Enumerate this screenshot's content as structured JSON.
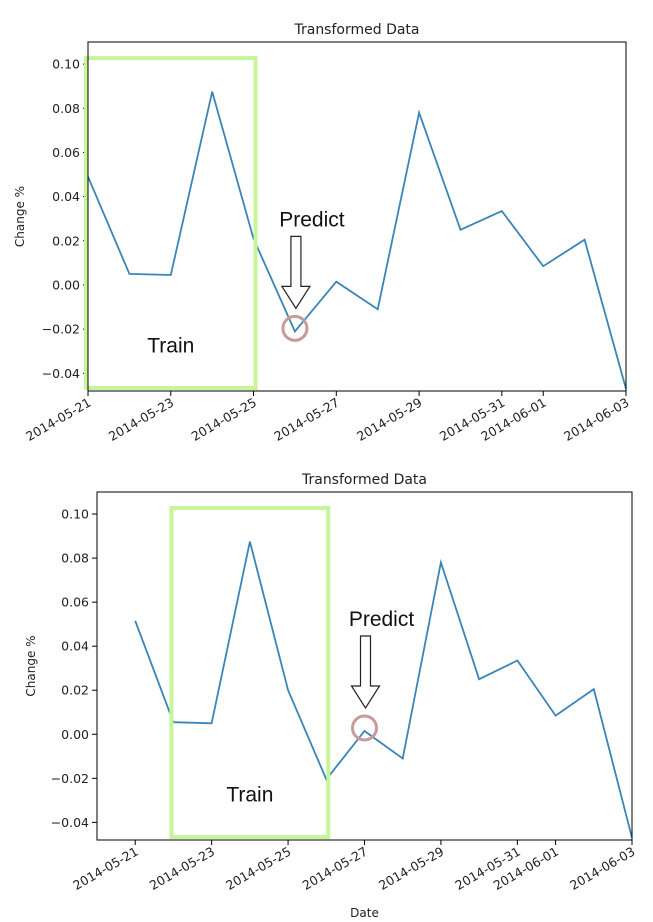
{
  "chart_data": [
    {
      "type": "line",
      "title": "Transformed Data",
      "xlabel": "",
      "ylabel": "Change %",
      "x": [
        "2014-05-21",
        "2014-05-22",
        "2014-05-23",
        "2014-05-24",
        "2014-05-25",
        "2014-05-26",
        "2014-05-27",
        "2014-05-28",
        "2014-05-29",
        "2014-05-30",
        "2014-05-31",
        "2014-06-01",
        "2014-06-02",
        "2014-06-03"
      ],
      "series": [
        {
          "values": [
            0.049,
            0.005,
            0.0045,
            0.0875,
            0.021,
            -0.021,
            0.0015,
            -0.011,
            0.078,
            0.025,
            0.0335,
            0.0085,
            0.0205,
            -0.047
          ]
        }
      ],
      "xticks": [
        "2014-05-21",
        "2014-05-23",
        "2014-05-25",
        "2014-05-27",
        "2014-05-29",
        "2014-05-31",
        "2014-06-01",
        "2014-06-03"
      ],
      "yticks": [
        -0.04,
        -0.02,
        0.0,
        0.02,
        0.04,
        0.06,
        0.08,
        0.1
      ],
      "ytick_labels": [
        "−0.04",
        "−0.02",
        "0.00",
        "0.02",
        "0.04",
        "0.06",
        "0.08",
        "0.10"
      ],
      "xlim": [
        "2014-05-21",
        "2014-06-03"
      ],
      "ylim": [
        -0.048,
        0.11
      ],
      "line_color": "#3a85b8",
      "annotations": {
        "train_label": "Train",
        "train_range": [
          "2014-05-21",
          "2014-05-25"
        ],
        "predict_label": "Predict",
        "predict_point": "2014-05-26",
        "box_color": "#c6f59a",
        "circle_color": "#c89a9a"
      }
    },
    {
      "type": "line",
      "title": "Transformed Data",
      "xlabel": "Date",
      "ylabel": "Change %",
      "x": [
        "2014-05-21",
        "2014-05-22",
        "2014-05-23",
        "2014-05-24",
        "2014-05-25",
        "2014-05-26",
        "2014-05-27",
        "2014-05-28",
        "2014-05-29",
        "2014-05-30",
        "2014-05-31",
        "2014-06-01",
        "2014-06-02",
        "2014-06-03"
      ],
      "series": [
        {
          "values": [
            0.0515,
            0.0055,
            0.005,
            0.0875,
            0.02,
            -0.0205,
            0.0015,
            -0.011,
            0.078,
            0.025,
            0.0335,
            0.0085,
            0.0205,
            -0.047
          ]
        }
      ],
      "xticks": [
        "2014-05-21",
        "2014-05-23",
        "2014-05-25",
        "2014-05-27",
        "2014-05-29",
        "2014-05-31",
        "2014-06-01",
        "2014-06-03"
      ],
      "yticks": [
        -0.04,
        -0.02,
        0.0,
        0.02,
        0.04,
        0.06,
        0.08,
        0.1
      ],
      "ytick_labels": [
        "−0.04",
        "−0.02",
        "0.00",
        "0.02",
        "0.04",
        "0.06",
        "0.08",
        "0.10"
      ],
      "xlim": [
        "2014-05-20",
        "2014-06-03"
      ],
      "ylim": [
        -0.048,
        0.11
      ],
      "line_color": "#3a85b8",
      "annotations": {
        "train_label": "Train",
        "train_range": [
          "2014-05-22",
          "2014-05-26"
        ],
        "predict_label": "Predict",
        "predict_point": "2014-05-27",
        "box_color": "#c6f59a",
        "circle_color": "#c89a9a"
      }
    }
  ]
}
